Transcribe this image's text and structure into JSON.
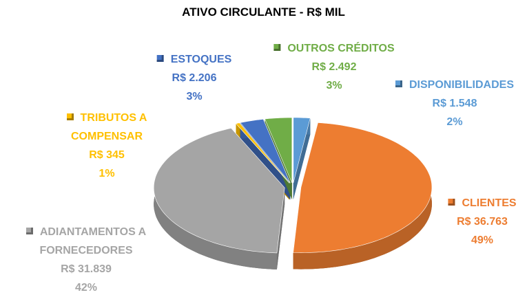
{
  "chart_data": {
    "type": "pie",
    "title": "ATIVO CIRCULANTE - R$ MIL",
    "categories": [
      "DISPONIBILIDADES",
      "CLIENTES",
      "ADIANTAMENTOS A FORNECEDORES",
      "TRIBUTOS A COMPENSAR",
      "ESTOQUES",
      "OUTROS CRÉDITOS"
    ],
    "values": [
      1548,
      36763,
      31839,
      345,
      2206,
      2492
    ],
    "value_labels": [
      "R$ 1.548",
      "R$ 36.763",
      "R$ 31.839",
      "R$ 345",
      "R$ 2.206",
      "R$ 2.492"
    ],
    "percents": [
      2,
      49,
      42,
      1,
      3,
      3
    ],
    "percent_labels": [
      "2%",
      "49%",
      "42%",
      "1%",
      "3%",
      "3%"
    ],
    "colors": [
      "#5b9bd5",
      "#ed7d31",
      "#a5a5a5",
      "#ffc000",
      "#4472c4",
      "#70ad47"
    ],
    "three_d": true,
    "exploded": true
  }
}
